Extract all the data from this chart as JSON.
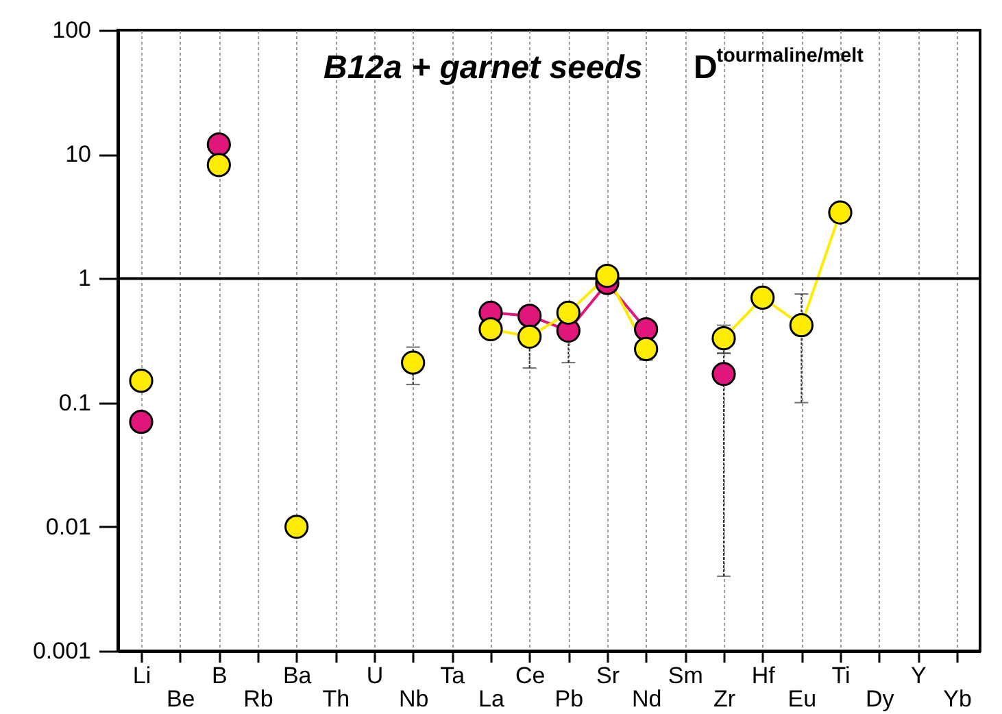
{
  "chart_data": {
    "type": "line",
    "annotations": [
      "B12a + garnet seeds",
      "D$^{tourmaline/melt}$"
    ],
    "categories": [
      "Li",
      "Be",
      "B",
      "Rb",
      "Ba",
      "Th",
      "U",
      "Nb",
      "Ta",
      "La",
      "Ce",
      "Pb",
      "Sr",
      "Nd",
      "Sm",
      "Zr",
      "Hf",
      "Eu",
      "Ti",
      "Dy",
      "Y",
      "Yb"
    ],
    "series": [
      {
        "color": "#e0167a",
        "values": [
          0.07,
          null,
          12,
          null,
          null,
          null,
          null,
          null,
          null,
          0.53,
          0.5,
          0.38,
          0.92,
          0.39,
          null,
          0.17,
          null,
          null,
          null,
          null,
          null,
          null
        ],
        "errors": [
          null,
          null,
          null,
          null,
          null,
          null,
          null,
          null,
          null,
          null,
          null,
          [
            0.21,
            0.38
          ],
          null,
          null,
          null,
          [
            0.004,
            0.25
          ],
          null,
          null,
          null,
          null,
          null,
          null
        ]
      },
      {
        "color": "#ffec00",
        "values": [
          0.15,
          null,
          8.2,
          null,
          0.01,
          null,
          null,
          0.21,
          null,
          0.39,
          0.34,
          0.53,
          1.05,
          0.27,
          null,
          0.33,
          0.7,
          0.42,
          3.4,
          null,
          null,
          null
        ],
        "errors": [
          null,
          null,
          null,
          null,
          null,
          null,
          null,
          [
            0.14,
            0.28
          ],
          null,
          null,
          [
            0.19,
            0.45
          ],
          null,
          null,
          [
            0.22,
            0.33
          ],
          null,
          [
            0.25,
            0.42
          ],
          null,
          [
            0.1,
            0.75
          ],
          null,
          null,
          null,
          null
        ]
      }
    ],
    "log": "y",
    "ylim": [
      0.001,
      100
    ],
    "yticks": [
      0.001,
      0.01,
      0.1,
      1,
      10,
      100
    ],
    "ref_lines": [
      {
        "axis": "y",
        "value": 1
      }
    ],
    "grid": "x",
    "marker": "circle",
    "line_style": "solid"
  }
}
